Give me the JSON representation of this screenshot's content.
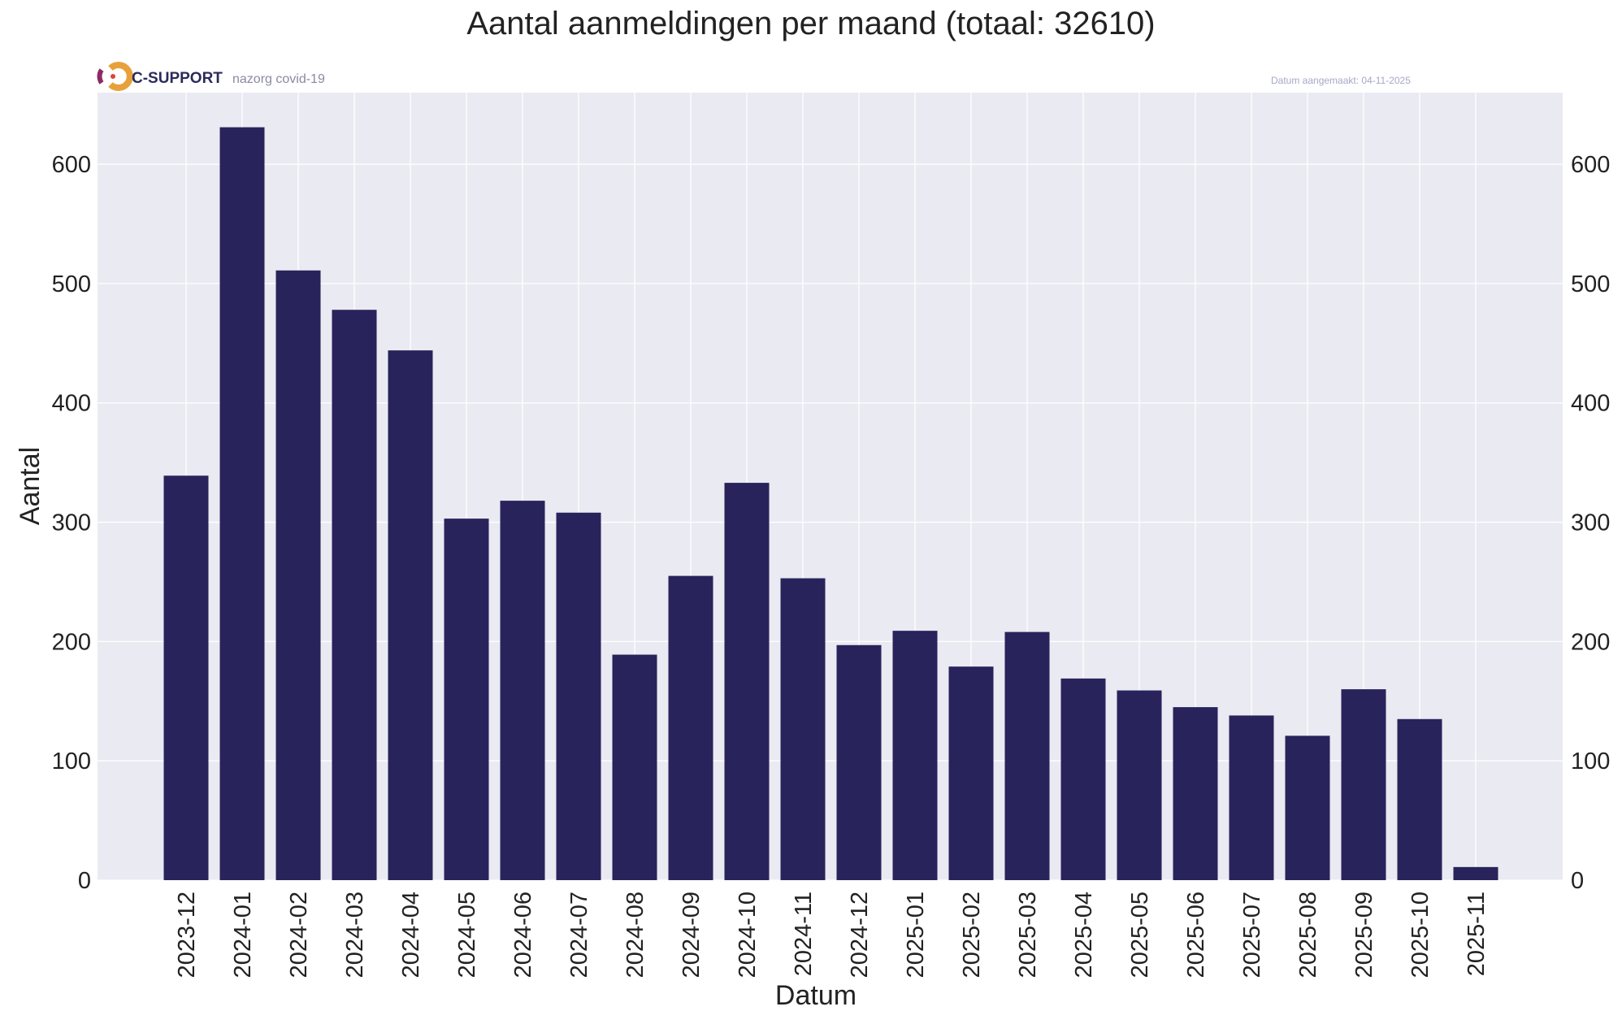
{
  "chart_data": {
    "type": "bar",
    "title": "Aantal aanmeldingen per maand (totaal: 32610)",
    "xlabel": "Datum",
    "ylabel": "Aantal",
    "categories": [
      "2023-12",
      "2024-01",
      "2024-02",
      "2024-03",
      "2024-04",
      "2024-05",
      "2024-06",
      "2024-07",
      "2024-08",
      "2024-09",
      "2024-10",
      "2024-11",
      "2024-12",
      "2025-01",
      "2025-02",
      "2025-03",
      "2025-04",
      "2025-05",
      "2025-06",
      "2025-07",
      "2025-08",
      "2025-09",
      "2025-10",
      "2025-11"
    ],
    "values": [
      339,
      631,
      511,
      478,
      444,
      303,
      318,
      308,
      189,
      255,
      333,
      253,
      197,
      209,
      179,
      208,
      169,
      159,
      145,
      138,
      121,
      160,
      135,
      11
    ],
    "faded_categories": [
      "2025-11"
    ],
    "ylim": [
      0,
      660
    ],
    "yticks": [
      0,
      100,
      200,
      300,
      400,
      500,
      600
    ],
    "grid": true,
    "bar_color": "#29235c",
    "plot_background": "#eaeaf2",
    "grid_color": "#ffffff",
    "faded_tick_color": "#c8c8c8"
  },
  "logo": {
    "brand": "C-SUPPORT",
    "subtitle": "nazorg covid-19",
    "colors": [
      "#e8a13a",
      "#d9473a",
      "#8e2a63",
      "#29235c"
    ]
  },
  "created_label": "Datum aangemaakt: 04-11-2025"
}
